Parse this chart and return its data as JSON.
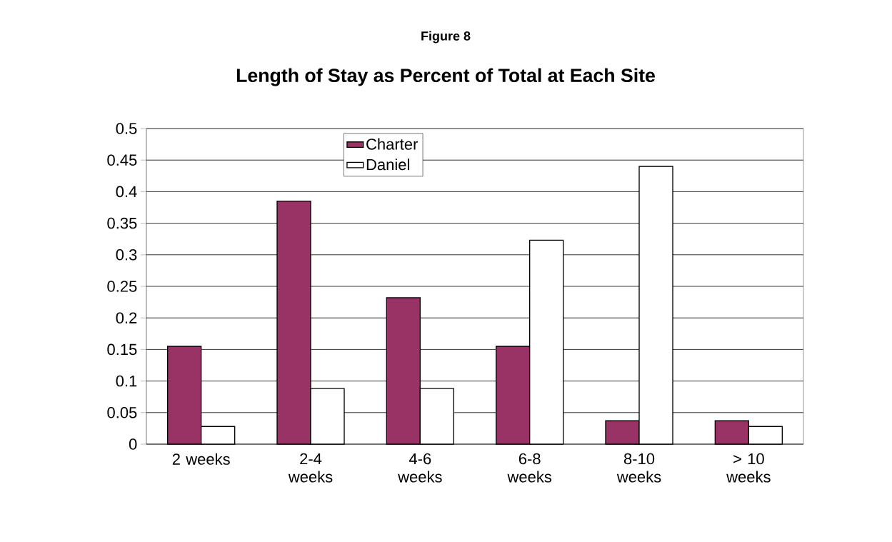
{
  "chart_data": {
    "type": "bar",
    "title": "Figure 8",
    "subtitle": "Length of Stay as Percent of Total at Each Site",
    "categories": [
      "2 weeks",
      "2-4 weeks",
      "4-6 weeks",
      "6-8 weeks",
      "8-10 weeks",
      "> 10 weeks"
    ],
    "series": [
      {
        "name": "Charter",
        "color": "#993366",
        "values": [
          0.155,
          0.385,
          0.232,
          0.155,
          0.037,
          0.037
        ]
      },
      {
        "name": "Daniel",
        "color": "#ffffff",
        "values": [
          0.028,
          0.088,
          0.088,
          0.323,
          0.44,
          0.028
        ]
      }
    ],
    "ylim": [
      0,
      0.5
    ],
    "yticks": [
      0,
      0.05,
      0.1,
      0.15,
      0.2,
      0.25,
      0.3,
      0.35,
      0.4,
      0.45,
      0.5
    ],
    "grid": "y",
    "legend": "top"
  }
}
